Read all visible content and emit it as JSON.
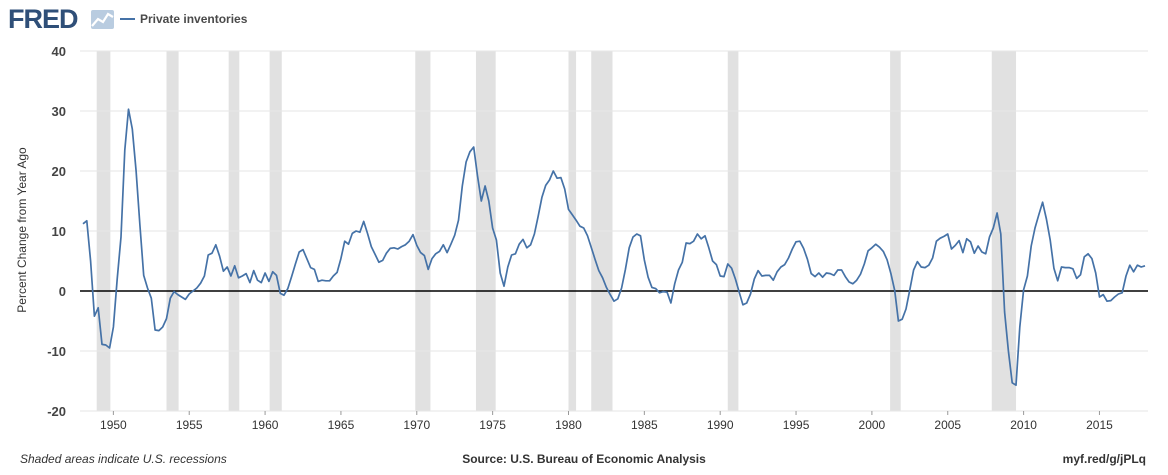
{
  "header": {
    "logo_text": "FRED",
    "legend_label": "Private inventories"
  },
  "footer": {
    "note": "Shaded areas indicate U.S. recessions",
    "source": "Source: U.S. Bureau of Economic Analysis",
    "link": "myf.red/g/jPLq"
  },
  "colors": {
    "series": "#4572a7",
    "recession": "#e1e1e1",
    "zero_line": "#000000",
    "grid": "#e6e6e6",
    "background": "#ffffff"
  },
  "chart_data": {
    "type": "line",
    "ylabel": "Percent Change from Year Ago",
    "ylim": [
      -20,
      40
    ],
    "xlim": [
      1947.8,
      2018.2
    ],
    "yticks": [
      -20,
      -10,
      0,
      10,
      20,
      30,
      40
    ],
    "xticks": [
      1950,
      1955,
      1960,
      1965,
      1970,
      1975,
      1980,
      1985,
      1990,
      1995,
      2000,
      2005,
      2010,
      2015
    ],
    "grid": true,
    "legend": "top-left",
    "recessions": [
      [
        1948.9,
        1949.8
      ],
      [
        1953.5,
        1954.3
      ],
      [
        1957.6,
        1958.3
      ],
      [
        1960.3,
        1961.1
      ],
      [
        1969.9,
        1970.9
      ],
      [
        1973.9,
        1975.2
      ],
      [
        1980.0,
        1980.5
      ],
      [
        1981.5,
        1982.9
      ],
      [
        1990.5,
        1991.2
      ],
      [
        2001.2,
        2001.9
      ],
      [
        2007.9,
        2009.5
      ]
    ],
    "series": [
      {
        "name": "Private inventories",
        "points": [
          [
            1948.0,
            11.2
          ],
          [
            1948.25,
            11.7
          ],
          [
            1948.5,
            5.0
          ],
          [
            1948.75,
            -4.2
          ],
          [
            1949.0,
            -2.8
          ],
          [
            1949.25,
            -8.9
          ],
          [
            1949.5,
            -9.0
          ],
          [
            1949.75,
            -9.5
          ],
          [
            1950.0,
            -6.0
          ],
          [
            1950.25,
            2.0
          ],
          [
            1950.5,
            9.0
          ],
          [
            1950.75,
            23.5
          ],
          [
            1951.0,
            30.3
          ],
          [
            1951.25,
            27.0
          ],
          [
            1951.5,
            20.0
          ],
          [
            1951.75,
            11.0
          ],
          [
            1952.0,
            2.6
          ],
          [
            1952.25,
            0.5
          ],
          [
            1952.5,
            -1.2
          ],
          [
            1952.75,
            -6.5
          ],
          [
            1953.0,
            -6.6
          ],
          [
            1953.25,
            -6.0
          ],
          [
            1953.5,
            -4.6
          ],
          [
            1953.75,
            -1.2
          ],
          [
            1954.0,
            -0.1
          ],
          [
            1954.25,
            -0.6
          ],
          [
            1954.5,
            -1.0
          ],
          [
            1954.75,
            -1.4
          ],
          [
            1955.0,
            -0.5
          ],
          [
            1955.25,
            0.0
          ],
          [
            1955.5,
            0.5
          ],
          [
            1955.75,
            1.3
          ],
          [
            1956.0,
            2.5
          ],
          [
            1956.25,
            6.0
          ],
          [
            1956.5,
            6.3
          ],
          [
            1956.75,
            7.7
          ],
          [
            1957.0,
            5.8
          ],
          [
            1957.25,
            3.3
          ],
          [
            1957.5,
            4.0
          ],
          [
            1957.75,
            2.5
          ],
          [
            1958.0,
            4.2
          ],
          [
            1958.25,
            2.2
          ],
          [
            1958.5,
            2.5
          ],
          [
            1958.75,
            2.9
          ],
          [
            1959.0,
            1.4
          ],
          [
            1959.25,
            3.4
          ],
          [
            1959.5,
            1.8
          ],
          [
            1959.75,
            1.4
          ],
          [
            1960.0,
            3.0
          ],
          [
            1960.25,
            1.6
          ],
          [
            1960.5,
            3.2
          ],
          [
            1960.75,
            2.6
          ],
          [
            1961.0,
            -0.4
          ],
          [
            1961.25,
            -0.7
          ],
          [
            1961.5,
            0.4
          ],
          [
            1961.75,
            2.4
          ],
          [
            1962.0,
            4.5
          ],
          [
            1962.25,
            6.5
          ],
          [
            1962.5,
            6.9
          ],
          [
            1962.75,
            5.4
          ],
          [
            1963.0,
            3.9
          ],
          [
            1963.25,
            3.6
          ],
          [
            1963.5,
            1.6
          ],
          [
            1963.75,
            1.8
          ],
          [
            1964.0,
            1.7
          ],
          [
            1964.25,
            1.7
          ],
          [
            1964.5,
            2.5
          ],
          [
            1964.75,
            3.1
          ],
          [
            1965.0,
            5.4
          ],
          [
            1965.25,
            8.3
          ],
          [
            1965.5,
            7.8
          ],
          [
            1965.75,
            9.6
          ],
          [
            1966.0,
            10.0
          ],
          [
            1966.25,
            9.8
          ],
          [
            1966.5,
            11.6
          ],
          [
            1966.75,
            9.6
          ],
          [
            1967.0,
            7.4
          ],
          [
            1967.25,
            6.1
          ],
          [
            1967.5,
            4.8
          ],
          [
            1967.75,
            5.1
          ],
          [
            1968.0,
            6.3
          ],
          [
            1968.25,
            7.1
          ],
          [
            1968.5,
            7.2
          ],
          [
            1968.75,
            7.0
          ],
          [
            1969.0,
            7.4
          ],
          [
            1969.25,
            7.7
          ],
          [
            1969.5,
            8.3
          ],
          [
            1969.75,
            9.4
          ],
          [
            1970.0,
            7.6
          ],
          [
            1970.25,
            6.4
          ],
          [
            1970.5,
            5.9
          ],
          [
            1970.75,
            3.6
          ],
          [
            1971.0,
            5.4
          ],
          [
            1971.25,
            6.2
          ],
          [
            1971.5,
            6.6
          ],
          [
            1971.75,
            7.7
          ],
          [
            1972.0,
            6.4
          ],
          [
            1972.25,
            7.8
          ],
          [
            1972.5,
            9.3
          ],
          [
            1972.75,
            11.8
          ],
          [
            1973.0,
            17.5
          ],
          [
            1973.25,
            21.5
          ],
          [
            1973.5,
            23.2
          ],
          [
            1973.75,
            24.0
          ],
          [
            1974.0,
            19.2
          ],
          [
            1974.25,
            15.0
          ],
          [
            1974.5,
            17.5
          ],
          [
            1974.75,
            15.0
          ],
          [
            1975.0,
            10.5
          ],
          [
            1975.25,
            8.5
          ],
          [
            1975.5,
            3.0
          ],
          [
            1975.75,
            0.8
          ],
          [
            1976.0,
            4.0
          ],
          [
            1976.25,
            6.0
          ],
          [
            1976.5,
            6.2
          ],
          [
            1976.75,
            7.8
          ],
          [
            1977.0,
            8.6
          ],
          [
            1977.25,
            7.2
          ],
          [
            1977.5,
            7.7
          ],
          [
            1977.75,
            9.5
          ],
          [
            1978.0,
            12.4
          ],
          [
            1978.25,
            15.6
          ],
          [
            1978.5,
            17.6
          ],
          [
            1978.75,
            18.5
          ],
          [
            1979.0,
            20.0
          ],
          [
            1979.25,
            18.8
          ],
          [
            1979.5,
            18.9
          ],
          [
            1979.75,
            17.0
          ],
          [
            1980.0,
            13.6
          ],
          [
            1980.25,
            12.7
          ],
          [
            1980.5,
            11.8
          ],
          [
            1980.75,
            10.8
          ],
          [
            1981.0,
            10.5
          ],
          [
            1981.25,
            9.2
          ],
          [
            1981.5,
            7.3
          ],
          [
            1981.75,
            5.3
          ],
          [
            1982.0,
            3.4
          ],
          [
            1982.25,
            2.2
          ],
          [
            1982.5,
            0.6
          ],
          [
            1982.75,
            -0.6
          ],
          [
            1983.0,
            -1.7
          ],
          [
            1983.25,
            -1.3
          ],
          [
            1983.5,
            0.5
          ],
          [
            1983.75,
            3.6
          ],
          [
            1984.0,
            7.2
          ],
          [
            1984.25,
            9.0
          ],
          [
            1984.5,
            9.5
          ],
          [
            1984.75,
            9.2
          ],
          [
            1985.0,
            5.2
          ],
          [
            1985.25,
            2.3
          ],
          [
            1985.5,
            0.6
          ],
          [
            1985.75,
            0.4
          ],
          [
            1986.0,
            -0.3
          ],
          [
            1986.25,
            -0.1
          ],
          [
            1986.5,
            -0.2
          ],
          [
            1986.75,
            -2.0
          ],
          [
            1987.0,
            1.2
          ],
          [
            1987.25,
            3.5
          ],
          [
            1987.5,
            4.8
          ],
          [
            1987.75,
            8.0
          ],
          [
            1988.0,
            7.9
          ],
          [
            1988.25,
            8.3
          ],
          [
            1988.5,
            9.5
          ],
          [
            1988.75,
            8.7
          ],
          [
            1989.0,
            9.2
          ],
          [
            1989.25,
            7.2
          ],
          [
            1989.5,
            5.0
          ],
          [
            1989.75,
            4.4
          ],
          [
            1990.0,
            2.5
          ],
          [
            1990.25,
            2.4
          ],
          [
            1990.5,
            4.5
          ],
          [
            1990.75,
            3.8
          ],
          [
            1991.0,
            2.0
          ],
          [
            1991.25,
            -0.2
          ],
          [
            1991.5,
            -2.3
          ],
          [
            1991.75,
            -2.0
          ],
          [
            1992.0,
            -0.5
          ],
          [
            1992.25,
            2.0
          ],
          [
            1992.5,
            3.4
          ],
          [
            1992.75,
            2.5
          ],
          [
            1993.0,
            2.6
          ],
          [
            1993.25,
            2.6
          ],
          [
            1993.5,
            1.8
          ],
          [
            1993.75,
            3.2
          ],
          [
            1994.0,
            4.0
          ],
          [
            1994.25,
            4.4
          ],
          [
            1994.5,
            5.5
          ],
          [
            1994.75,
            7.0
          ],
          [
            1995.0,
            8.2
          ],
          [
            1995.25,
            8.3
          ],
          [
            1995.5,
            7.1
          ],
          [
            1995.75,
            5.3
          ],
          [
            1996.0,
            2.9
          ],
          [
            1996.25,
            2.4
          ],
          [
            1996.5,
            3.0
          ],
          [
            1996.75,
            2.3
          ],
          [
            1997.0,
            3.0
          ],
          [
            1997.25,
            2.9
          ],
          [
            1997.5,
            2.6
          ],
          [
            1997.75,
            3.5
          ],
          [
            1998.0,
            3.5
          ],
          [
            1998.25,
            2.4
          ],
          [
            1998.5,
            1.5
          ],
          [
            1998.75,
            1.2
          ],
          [
            1999.0,
            1.8
          ],
          [
            1999.25,
            2.8
          ],
          [
            1999.5,
            4.5
          ],
          [
            1999.75,
            6.7
          ],
          [
            2000.0,
            7.2
          ],
          [
            2000.25,
            7.8
          ],
          [
            2000.5,
            7.3
          ],
          [
            2000.75,
            6.6
          ],
          [
            2001.0,
            5.2
          ],
          [
            2001.25,
            2.9
          ],
          [
            2001.5,
            0.1
          ],
          [
            2001.75,
            -5.0
          ],
          [
            2002.0,
            -4.7
          ],
          [
            2002.25,
            -3.0
          ],
          [
            2002.5,
            0.2
          ],
          [
            2002.75,
            3.5
          ],
          [
            2003.0,
            4.9
          ],
          [
            2003.25,
            4.0
          ],
          [
            2003.5,
            3.9
          ],
          [
            2003.75,
            4.3
          ],
          [
            2004.0,
            5.5
          ],
          [
            2004.25,
            8.3
          ],
          [
            2004.5,
            8.8
          ],
          [
            2004.75,
            9.1
          ],
          [
            2005.0,
            9.5
          ],
          [
            2005.25,
            7.0
          ],
          [
            2005.5,
            7.6
          ],
          [
            2005.75,
            8.4
          ],
          [
            2006.0,
            6.4
          ],
          [
            2006.25,
            8.7
          ],
          [
            2006.5,
            8.2
          ],
          [
            2006.75,
            6.3
          ],
          [
            2007.0,
            7.5
          ],
          [
            2007.25,
            6.5
          ],
          [
            2007.5,
            6.2
          ],
          [
            2007.75,
            9.0
          ],
          [
            2008.0,
            10.5
          ],
          [
            2008.25,
            13.0
          ],
          [
            2008.5,
            9.5
          ],
          [
            2008.75,
            -3.5
          ],
          [
            2009.0,
            -10.0
          ],
          [
            2009.25,
            -15.3
          ],
          [
            2009.5,
            -15.7
          ],
          [
            2009.75,
            -6.0
          ],
          [
            2010.0,
            0.2
          ],
          [
            2010.25,
            2.5
          ],
          [
            2010.5,
            7.5
          ],
          [
            2010.75,
            10.5
          ],
          [
            2011.0,
            12.7
          ],
          [
            2011.25,
            14.8
          ],
          [
            2011.5,
            12.0
          ],
          [
            2011.75,
            8.5
          ],
          [
            2012.0,
            3.8
          ],
          [
            2012.25,
            1.7
          ],
          [
            2012.5,
            4.0
          ],
          [
            2012.75,
            3.9
          ],
          [
            2013.0,
            3.9
          ],
          [
            2013.25,
            3.7
          ],
          [
            2013.5,
            2.1
          ],
          [
            2013.75,
            2.7
          ],
          [
            2014.0,
            5.7
          ],
          [
            2014.25,
            6.2
          ],
          [
            2014.5,
            5.4
          ],
          [
            2014.75,
            3.0
          ],
          [
            2015.0,
            -1.0
          ],
          [
            2015.25,
            -0.6
          ],
          [
            2015.5,
            -1.7
          ],
          [
            2015.75,
            -1.6
          ],
          [
            2016.0,
            -1.0
          ],
          [
            2016.25,
            -0.5
          ],
          [
            2016.5,
            -0.3
          ],
          [
            2016.75,
            2.5
          ],
          [
            2017.0,
            4.3
          ],
          [
            2017.25,
            3.2
          ],
          [
            2017.5,
            4.3
          ],
          [
            2017.75,
            4.0
          ],
          [
            2018.0,
            4.2
          ]
        ]
      }
    ]
  }
}
